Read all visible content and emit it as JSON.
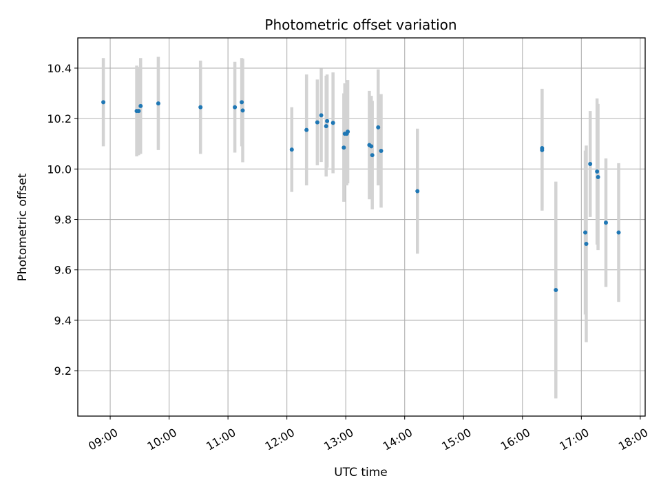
{
  "chart_data": {
    "type": "scatter",
    "title": "Photometric offset variation",
    "xlabel": "UTC time",
    "ylabel": "Photometric offset",
    "x_ticks": [
      "09:00",
      "10:00",
      "11:00",
      "12:00",
      "13:00",
      "14:00",
      "15:00",
      "16:00",
      "17:00",
      "18:00"
    ],
    "y_ticks": [
      "9.2",
      "9.4",
      "9.6",
      "9.8",
      "10.0",
      "10.2",
      "10.4"
    ],
    "xlim": [
      "08:27",
      "18:05"
    ],
    "ylim": [
      9.02,
      10.52
    ],
    "grid": true,
    "colors": {
      "point": "#1f77b4",
      "errorbar": "#d3d3d3",
      "grid": "#b0b0b0"
    },
    "points": [
      {
        "x": "08:53",
        "y": 10.265,
        "err": 0.175
      },
      {
        "x": "09:27",
        "y": 10.23,
        "err": 0.18
      },
      {
        "x": "09:29",
        "y": 10.23,
        "err": 0.175
      },
      {
        "x": "09:31",
        "y": 10.25,
        "err": 0.19
      },
      {
        "x": "09:49",
        "y": 10.26,
        "err": 0.185
      },
      {
        "x": "10:32",
        "y": 10.245,
        "err": 0.185
      },
      {
        "x": "11:07",
        "y": 10.245,
        "err": 0.18
      },
      {
        "x": "11:14",
        "y": 10.265,
        "err": 0.175
      },
      {
        "x": "11:15",
        "y": 10.232,
        "err": 0.205
      },
      {
        "x": "12:05",
        "y": 10.077,
        "err": 0.168
      },
      {
        "x": "12:20",
        "y": 10.155,
        "err": 0.22
      },
      {
        "x": "12:31",
        "y": 10.185,
        "err": 0.17
      },
      {
        "x": "12:35",
        "y": 10.213,
        "err": 0.185
      },
      {
        "x": "12:40",
        "y": 10.17,
        "err": 0.2
      },
      {
        "x": "12:41",
        "y": 10.19,
        "err": 0.185
      },
      {
        "x": "12:47",
        "y": 10.183,
        "err": 0.2
      },
      {
        "x": "12:58",
        "y": 10.085,
        "err": 0.215
      },
      {
        "x": "12:59",
        "y": 10.14,
        "err": 0.2
      },
      {
        "x": "13:01",
        "y": 10.14,
        "err": 0.205
      },
      {
        "x": "13:02",
        "y": 10.148,
        "err": 0.205
      },
      {
        "x": "13:24",
        "y": 10.095,
        "err": 0.215
      },
      {
        "x": "13:26",
        "y": 10.09,
        "err": 0.2
      },
      {
        "x": "13:27",
        "y": 10.055,
        "err": 0.215
      },
      {
        "x": "13:33",
        "y": 10.165,
        "err": 0.23
      },
      {
        "x": "13:36",
        "y": 10.072,
        "err": 0.225
      },
      {
        "x": "14:13",
        "y": 9.912,
        "err": 0.248
      },
      {
        "x": "16:20",
        "y": 10.075,
        "err": 0.24
      },
      {
        "x": "16:20",
        "y": 10.083,
        "err": 0.235
      },
      {
        "x": "16:34",
        "y": 9.52,
        "err": 0.43
      },
      {
        "x": "17:04",
        "y": 9.748,
        "err": 0.325
      },
      {
        "x": "17:05",
        "y": 9.703,
        "err": 0.39
      },
      {
        "x": "17:09",
        "y": 10.02,
        "err": 0.21
      },
      {
        "x": "17:16",
        "y": 9.99,
        "err": 0.29
      },
      {
        "x": "17:17",
        "y": 9.968,
        "err": 0.29
      },
      {
        "x": "17:25",
        "y": 9.787,
        "err": 0.255
      },
      {
        "x": "17:38",
        "y": 9.748,
        "err": 0.275
      }
    ]
  }
}
